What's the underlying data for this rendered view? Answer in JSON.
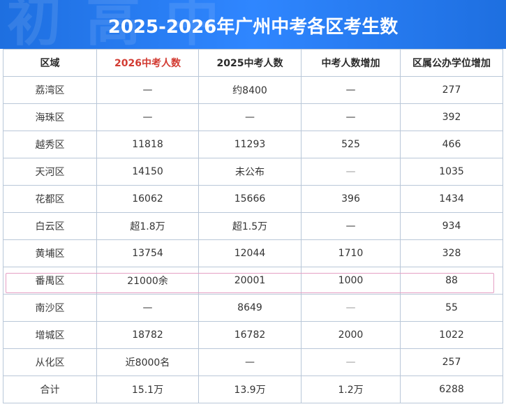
{
  "header": {
    "title": "2025-2026年广州中考各区考生数",
    "watermark": "初 高 中"
  },
  "table": {
    "columns": [
      "区域",
      "2026中考人数",
      "2025中考人数",
      "中考人数增加",
      "区属公办学位增加"
    ],
    "rows": [
      [
        "荔湾区",
        "—",
        "约8400",
        "—",
        "277"
      ],
      [
        "海珠区",
        "—",
        "—",
        "—",
        "392"
      ],
      [
        "越秀区",
        "11818",
        "11293",
        "525",
        "466"
      ],
      [
        "天河区",
        "14150",
        "未公布",
        "—",
        "1035"
      ],
      [
        "花都区",
        "16062",
        "15666",
        "396",
        "1434"
      ],
      [
        "白云区",
        "超1.8万",
        "超1.5万",
        "—",
        "934"
      ],
      [
        "黄埔区",
        "13754",
        "12044",
        "1710",
        "328"
      ],
      [
        "番禺区",
        "21000余",
        "20001",
        "1000",
        "88"
      ],
      [
        "南沙区",
        "—",
        "8649",
        "—",
        "55"
      ],
      [
        "增城区",
        "18782",
        "16782",
        "2000",
        "1022"
      ],
      [
        "从化区",
        "近8000名",
        "—",
        "—",
        "257"
      ],
      [
        "合计",
        "15.1万",
        "13.9万",
        "1.2万",
        "6288"
      ]
    ]
  },
  "colors": {
    "header_blue": "#2f86ff",
    "accent_red": "#d23b32",
    "highlight_border": "#e5a0c4"
  }
}
